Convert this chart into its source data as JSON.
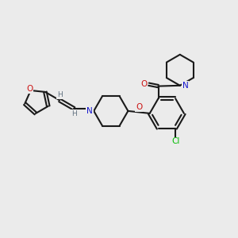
{
  "bg_color": "#ebebeb",
  "bond_color": "#1a1a1a",
  "N_color": "#1414cc",
  "O_color": "#cc1414",
  "Cl_color": "#00bb00",
  "H_color": "#607080",
  "lw": 1.5,
  "figsize": [
    3.0,
    3.0
  ],
  "dpi": 100,
  "xlim": [
    0,
    10
  ],
  "ylim": [
    0,
    10
  ]
}
